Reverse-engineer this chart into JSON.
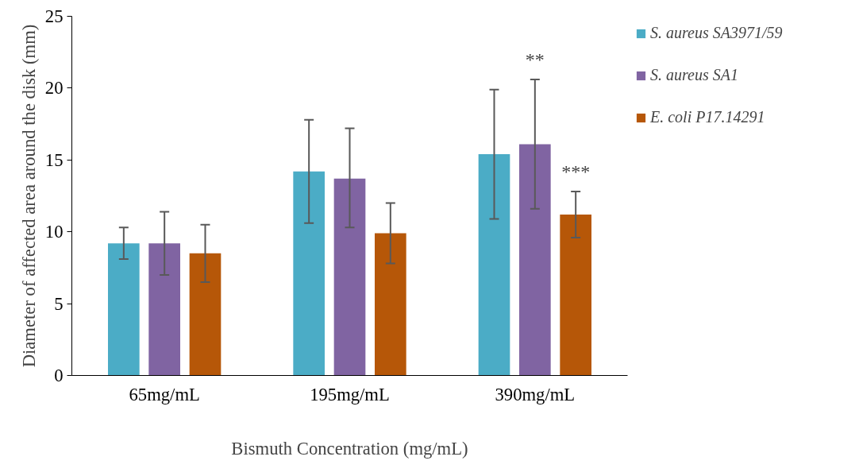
{
  "chart_data": {
    "type": "bar",
    "xlabel": "Bismuth Concentration (mg/mL)",
    "ylabel": "Diameter of affected area around the disk (mm)",
    "categories": [
      "65mg/mL",
      "195mg/mL",
      "390mg/mL"
    ],
    "series": [
      {
        "name": "S. aureus SA3971/59",
        "color": "#4bacc6",
        "values": [
          9.2,
          14.2,
          15.4
        ],
        "errors": [
          [
            8.1,
            10.3
          ],
          [
            10.6,
            17.8
          ],
          [
            10.9,
            19.9
          ]
        ]
      },
      {
        "name": "S. aureus SA1",
        "color": "#8064a2",
        "values": [
          9.2,
          13.7,
          16.1
        ],
        "errors": [
          [
            7.0,
            11.4
          ],
          [
            10.3,
            17.2
          ],
          [
            11.6,
            20.6
          ]
        ]
      },
      {
        "name": "E. coli P17.14291",
        "color": "#b65708",
        "values": [
          8.5,
          9.9,
          11.2
        ],
        "errors": [
          [
            6.5,
            10.5
          ],
          [
            7.8,
            12.0
          ],
          [
            9.6,
            12.8
          ]
        ]
      }
    ],
    "ylim": [
      0,
      25
    ],
    "yticks": [
      0,
      5,
      10,
      15,
      20,
      25
    ],
    "grid": false,
    "legend": "right",
    "annotations": [
      "**",
      "***"
    ]
  }
}
